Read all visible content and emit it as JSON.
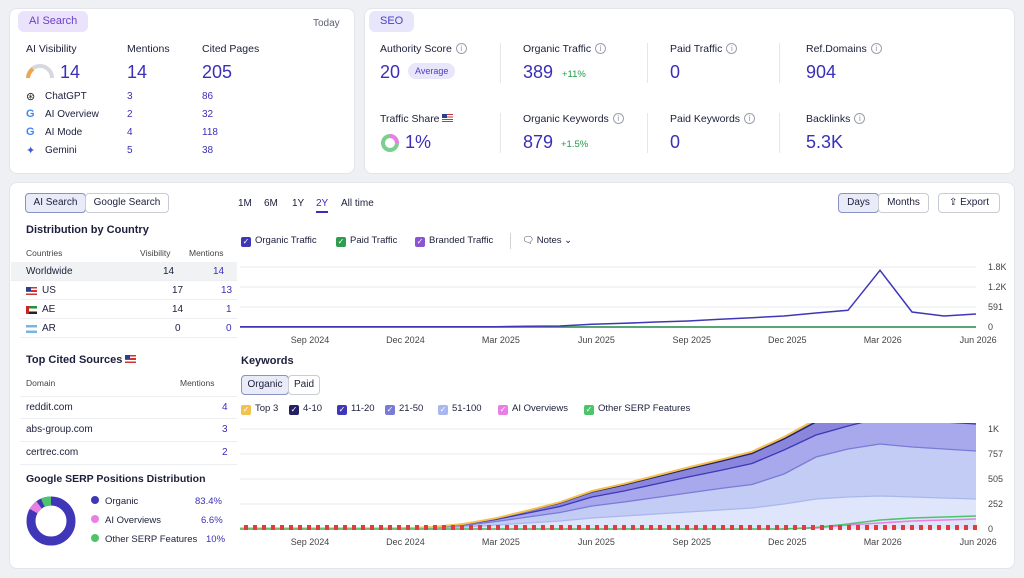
{
  "ai_panel": {
    "tag": "AI Search",
    "period": "Today",
    "headers": {
      "visibility": "AI Visibility",
      "mentions": "Mentions",
      "cited": "Cited Pages"
    },
    "totals": {
      "visibility": "14",
      "mentions": "14",
      "cited": "205"
    },
    "rows": [
      {
        "name": "ChatGPT",
        "mentions": "3",
        "cited": "86"
      },
      {
        "name": "AI Overview",
        "mentions": "2",
        "cited": "32"
      },
      {
        "name": "AI Mode",
        "mentions": "4",
        "cited": "118"
      },
      {
        "name": "Gemini",
        "mentions": "5",
        "cited": "38"
      }
    ]
  },
  "seo_panel": {
    "tag": "SEO",
    "authority_label": "Authority Score",
    "authority_value": "20",
    "authority_badge": "Average",
    "organic_traffic_label": "Organic Traffic",
    "organic_traffic_value": "389",
    "organic_traffic_delta": "+11%",
    "paid_traffic_label": "Paid Traffic",
    "paid_traffic_value": "0",
    "refdomains_label": "Ref.Domains",
    "refdomains_value": "904",
    "traffic_share_label": "Traffic Share",
    "traffic_share_value": "1%",
    "organic_kw_label": "Organic Keywords",
    "organic_kw_value": "879",
    "organic_kw_delta": "+1.5%",
    "paid_kw_label": "Paid Keywords",
    "paid_kw_value": "0",
    "backlinks_label": "Backlinks",
    "backlinks_value": "5.3K"
  },
  "left": {
    "tab_ai": "AI Search",
    "tab_google": "Google Search",
    "dist_title": "Distribution by Country",
    "dist_headers": {
      "country": "Countries",
      "visibility": "Visibility",
      "mentions": "Mentions"
    },
    "dist_rows": [
      {
        "country": "Worldwide",
        "visibility": "14",
        "mentions": "14"
      },
      {
        "country": "US",
        "visibility": "17",
        "mentions": "13"
      },
      {
        "country": "AE",
        "visibility": "14",
        "mentions": "1"
      },
      {
        "country": "AR",
        "visibility": "0",
        "mentions": "0"
      }
    ],
    "sources_title": "Top Cited Sources",
    "sources_headers": {
      "domain": "Domain",
      "mentions": "Mentions"
    },
    "sources": [
      {
        "domain": "reddit.com",
        "mentions": "4"
      },
      {
        "domain": "abs-group.com",
        "mentions": "3"
      },
      {
        "domain": "certrec.com",
        "mentions": "2"
      }
    ],
    "serp_title": "Google SERP Positions Distribution",
    "serp": [
      {
        "name": "Organic",
        "pct": "83.4%",
        "color": "#3f37b8"
      },
      {
        "name": "AI Overviews",
        "pct": "6.6%",
        "color": "#e97fe3"
      },
      {
        "name": "Other SERP Features",
        "pct": "10%",
        "color": "#4cc46a"
      }
    ]
  },
  "controls": {
    "ranges": [
      "1M",
      "6M",
      "1Y",
      "2Y",
      "All time"
    ],
    "active_range": "2Y",
    "days": "Days",
    "months": "Months",
    "export": "Export"
  },
  "traffic_legend": {
    "organic": "Organic Traffic",
    "paid": "Paid Traffic",
    "branded": "Branded Traffic",
    "notes": "Notes"
  },
  "keywords": {
    "title": "Keywords",
    "tab_organic": "Organic",
    "tab_paid": "Paid",
    "legend": [
      {
        "name": "Top 3",
        "color": "#f2c14e"
      },
      {
        "name": "4-10",
        "color": "#232067"
      },
      {
        "name": "11-20",
        "color": "#3f37b8"
      },
      {
        "name": "21-50",
        "color": "#7a7ad8"
      },
      {
        "name": "51-100",
        "color": "#a9b7ee"
      },
      {
        "name": "AI Overviews",
        "color": "#e97fe3"
      },
      {
        "name": "Other SERP Features",
        "color": "#4cc46a"
      }
    ]
  },
  "chart_data": [
    {
      "type": "line",
      "title": "",
      "x": [
        "Jul 2024",
        "Aug 2024",
        "Sep 2024",
        "Oct 2024",
        "Nov 2024",
        "Dec 2024",
        "Jan 2025",
        "Feb 2025",
        "Mar 2025",
        "Apr 2025",
        "May 2025",
        "Jun 2025",
        "Jul 2025",
        "Aug 2025",
        "Sep 2025",
        "Oct 2025",
        "Nov 2025",
        "Dec 2025",
        "Jan 2026",
        "Feb 2026",
        "Mar 2026",
        "Apr 2026",
        "May 2026",
        "Jun 2026"
      ],
      "series": [
        {
          "name": "Organic Traffic",
          "values": [
            10,
            10,
            10,
            10,
            10,
            10,
            10,
            10,
            10,
            20,
            30,
            80,
            110,
            150,
            180,
            230,
            280,
            330,
            420,
            500,
            1700,
            450,
            330,
            389
          ]
        },
        {
          "name": "Paid Traffic",
          "values": [
            0,
            0,
            0,
            0,
            0,
            0,
            0,
            0,
            0,
            0,
            0,
            0,
            0,
            0,
            0,
            0,
            0,
            0,
            0,
            0,
            0,
            0,
            0,
            0
          ]
        },
        {
          "name": "Branded Traffic",
          "values": [
            0,
            0,
            0,
            0,
            0,
            0,
            0,
            0,
            0,
            0,
            0,
            0,
            0,
            0,
            0,
            0,
            0,
            0,
            0,
            0,
            0,
            0,
            0,
            0
          ]
        }
      ],
      "x_ticks": [
        "Sep 2024",
        "Dec 2024",
        "Mar 2025",
        "Jun 2025",
        "Sep 2025",
        "Dec 2025",
        "Mar 2026",
        "Jun 2026"
      ],
      "y_ticks": [
        "1.8K",
        "1.2K",
        "591",
        "0"
      ],
      "ylim": [
        0,
        1800
      ]
    },
    {
      "type": "area",
      "title": "Keywords",
      "x": [
        "Jul 2024",
        "Aug 2024",
        "Sep 2024",
        "Oct 2024",
        "Nov 2024",
        "Dec 2024",
        "Jan 2025",
        "Feb 2025",
        "Mar 2025",
        "Apr 2025",
        "May 2025",
        "Jun 2025",
        "Jul 2025",
        "Aug 2025",
        "Sep 2025",
        "Oct 2025",
        "Nov 2025",
        "Dec 2025",
        "Jan 2026",
        "Feb 2026",
        "Mar 2026",
        "Apr 2026",
        "May 2026",
        "Jun 2026"
      ],
      "series": [
        {
          "name": "51-100",
          "values": [
            5,
            5,
            5,
            5,
            5,
            5,
            10,
            20,
            40,
            60,
            80,
            110,
            130,
            150,
            170,
            190,
            210,
            250,
            300,
            320,
            330,
            320,
            310,
            300
          ]
        },
        {
          "name": "21-50",
          "values": [
            2,
            2,
            2,
            2,
            2,
            2,
            5,
            15,
            35,
            60,
            85,
            120,
            140,
            165,
            190,
            215,
            235,
            300,
            420,
            480,
            520,
            500,
            490,
            480
          ]
        },
        {
          "name": "11-20",
          "values": [
            1,
            1,
            1,
            1,
            1,
            1,
            3,
            10,
            20,
            40,
            60,
            90,
            110,
            135,
            160,
            180,
            210,
            240,
            220,
            230,
            260,
            270,
            270,
            270
          ]
        },
        {
          "name": "4-10",
          "values": [
            0,
            0,
            0,
            0,
            0,
            0,
            1,
            5,
            10,
            20,
            35,
            50,
            60,
            70,
            80,
            90,
            100,
            110,
            130,
            140,
            160,
            150,
            150,
            150
          ]
        },
        {
          "name": "Top 3",
          "values": [
            0,
            0,
            0,
            0,
            0,
            0,
            0,
            1,
            3,
            5,
            8,
            10,
            12,
            14,
            15,
            17,
            18,
            20,
            25,
            28,
            30,
            30,
            30,
            30
          ]
        },
        {
          "name": "AI Overviews",
          "values": [
            0,
            0,
            0,
            0,
            0,
            0,
            0,
            0,
            0,
            0,
            0,
            0,
            0,
            0,
            0,
            0,
            0,
            0,
            10,
            40,
            60,
            80,
            90,
            100
          ]
        },
        {
          "name": "Other SERP Features",
          "values": [
            0,
            0,
            0,
            0,
            0,
            0,
            0,
            0,
            0,
            0,
            0,
            0,
            0,
            0,
            0,
            0,
            0,
            0,
            15,
            50,
            90,
            110,
            120,
            130
          ]
        }
      ],
      "x_ticks": [
        "Sep 2024",
        "Dec 2024",
        "Mar 2025",
        "Jun 2025",
        "Sep 2025",
        "Dec 2025",
        "Mar 2026",
        "Jun 2026"
      ],
      "y_ticks": [
        "1K",
        "757",
        "505",
        "252",
        "0"
      ],
      "ylim": [
        0,
        1000
      ]
    }
  ]
}
